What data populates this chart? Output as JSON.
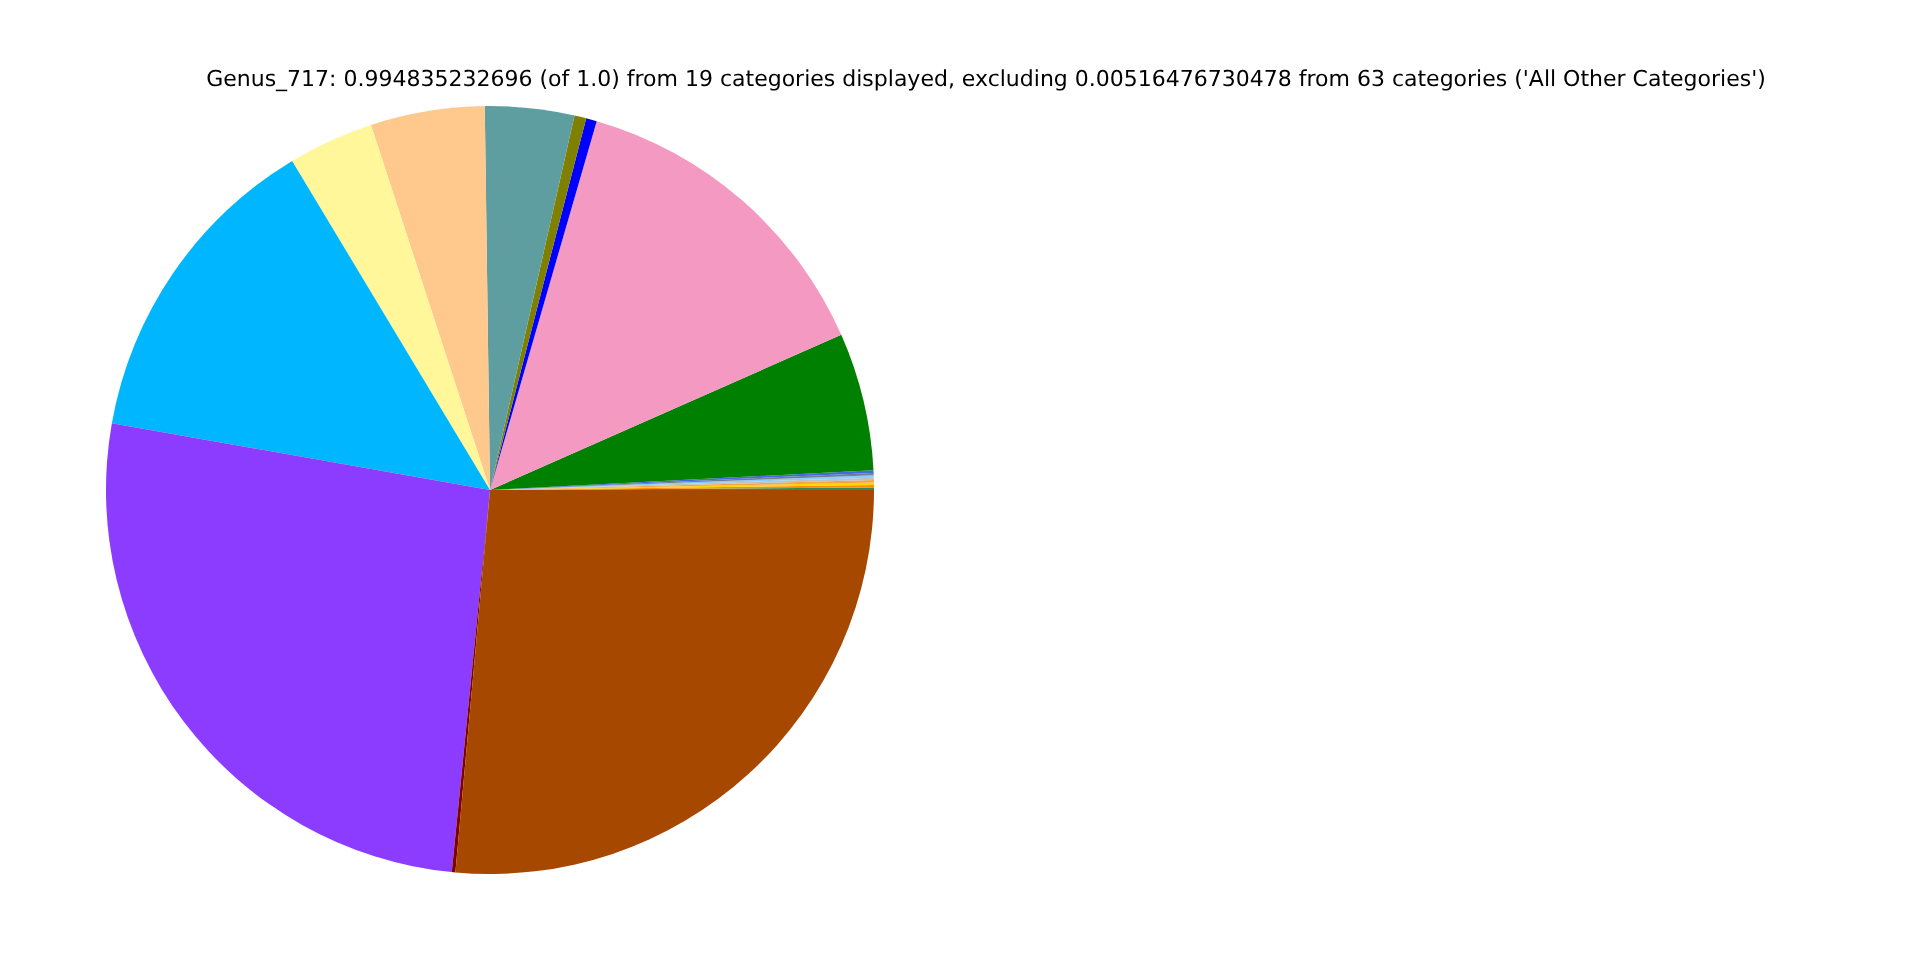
{
  "chart_data": {
    "type": "pie",
    "title": "Genus_717: 0.994835232696 (of 1.0) from 19 categories displayed, excluding 0.00516476730478 from 63 categories ('All Other Categories')",
    "categories": [
      null,
      null,
      null,
      null,
      null,
      null,
      null,
      null,
      null,
      null,
      null,
      null,
      null,
      null,
      null,
      null,
      null,
      null,
      null
    ],
    "values": [
      0.1,
      0.11,
      0.1,
      0.1,
      0.1,
      0.1,
      0.1,
      0.11,
      5.8,
      13.9,
      0.45,
      0.5,
      3.75,
      4.8,
      3.6,
      13.6,
      26.2,
      0.15,
      26.44
    ],
    "colors": [
      "#2e8b57",
      "#ff8c00",
      "#ffd700",
      "#ffa040",
      "#c0c0c0",
      "#87cefa",
      "#708090",
      "#4169e1",
      "#008000",
      "#f49ac2",
      "#0000ff",
      "#808000",
      "#5f9ea0",
      "#ffc88c",
      "#fff799",
      "#00b7ff",
      "#8c3cff",
      "#800000",
      "#a64800"
    ]
  }
}
